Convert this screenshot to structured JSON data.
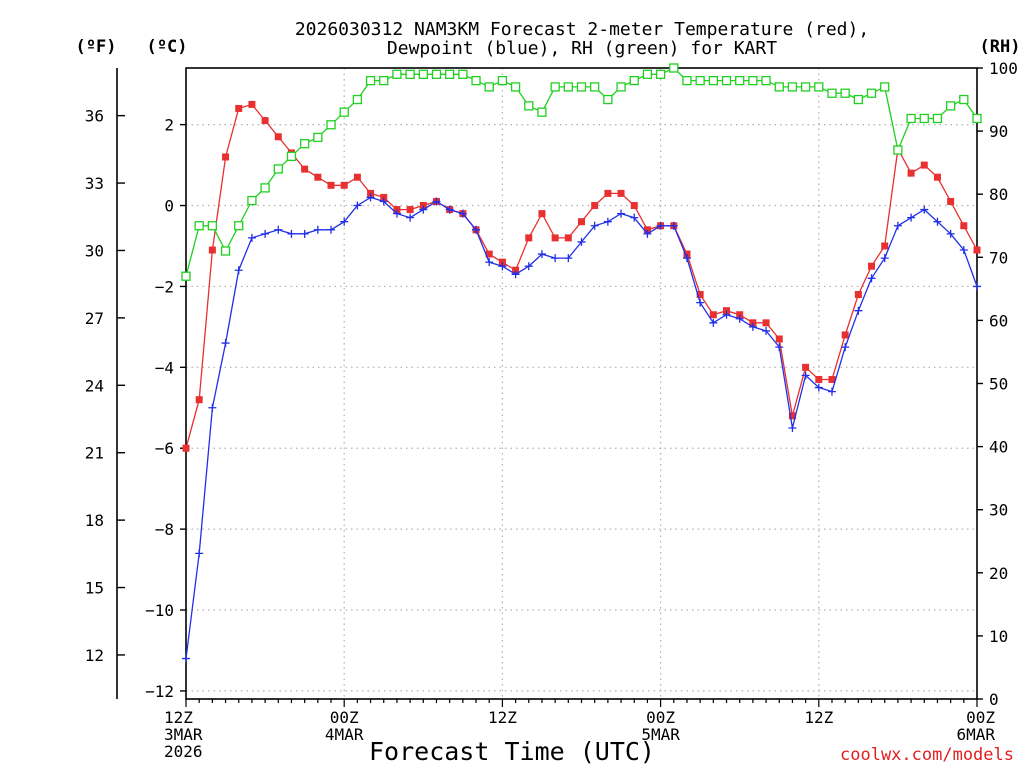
{
  "title": {
    "line1": "2026030312 NAM3KM Forecast 2-meter Temperature (red),",
    "line2": "Dewpoint (blue), RH (green) for KART"
  },
  "xlabel": "Forecast Time (UTC)",
  "credit": "coolwx.com/models",
  "units": {
    "fahrenheit": "(ºF)",
    "celsius": "(ºC)",
    "rh": "(RH)"
  },
  "colors": {
    "temperature": "#e83030",
    "dewpoint": "#2030e8",
    "rh": "#20d020",
    "grid": "#b0b0b0"
  },
  "chart_data": {
    "type": "line",
    "station": "KART",
    "model": "NAM3KM",
    "init": "2026030312",
    "x_unit": "forecast hour",
    "xlim": [
      0,
      60
    ],
    "x_ticks": [
      {
        "hour": 0,
        "label": [
          "12Z",
          "3MAR",
          "2026"
        ]
      },
      {
        "hour": 12,
        "label": [
          "00Z",
          "4MAR"
        ]
      },
      {
        "hour": 24,
        "label": [
          "12Z"
        ]
      },
      {
        "hour": 36,
        "label": [
          "00Z",
          "5MAR"
        ]
      },
      {
        "hour": 48,
        "label": [
          "12Z"
        ]
      },
      {
        "hour": 60,
        "label": [
          "00Z",
          "6MAR"
        ]
      }
    ],
    "y_left_celsius": {
      "label": "(ºC)",
      "ylim": [
        -12.2,
        3.4
      ],
      "ticks": [
        -12,
        -10,
        -8,
        -6,
        -4,
        -2,
        0,
        2
      ]
    },
    "y_left_fahrenheit": {
      "label": "(ºF)",
      "ticks": [
        12,
        15,
        18,
        21,
        24,
        27,
        30,
        33,
        36
      ]
    },
    "y_right_rh": {
      "label": "(RH)",
      "ylim": [
        0,
        100
      ],
      "ticks": [
        0,
        10,
        20,
        30,
        40,
        50,
        60,
        70,
        80,
        90,
        100
      ]
    },
    "series": [
      {
        "name": "Temperature",
        "unit": "°C",
        "color": "#e83030",
        "marker": "filled-square",
        "values": [
          -6.0,
          -4.8,
          -1.1,
          1.2,
          2.4,
          2.5,
          2.1,
          1.7,
          1.3,
          0.9,
          0.7,
          0.5,
          0.5,
          0.7,
          0.3,
          0.2,
          -0.1,
          -0.1,
          0.0,
          0.1,
          -0.1,
          -0.2,
          -0.6,
          -1.2,
          -1.4,
          -1.6,
          -0.8,
          -0.2,
          -0.8,
          -0.8,
          -0.4,
          -0.0,
          0.3,
          0.3,
          0.0,
          -0.6,
          -0.5,
          -0.5,
          -1.2,
          -2.2,
          -2.7,
          -2.6,
          -2.7,
          -2.9,
          -2.9,
          -3.3,
          -5.2,
          -4.0,
          -4.3,
          -4.3,
          -3.2,
          -2.2,
          -1.5,
          -1.0,
          1.4,
          0.8,
          1.0,
          0.7,
          0.1,
          -0.5,
          -1.1
        ]
      },
      {
        "name": "Dewpoint",
        "unit": "°C",
        "color": "#2030e8",
        "marker": "plus",
        "values": [
          -11.2,
          -8.6,
          -5.0,
          -3.4,
          -1.6,
          -0.8,
          -0.7,
          -0.6,
          -0.7,
          -0.7,
          -0.6,
          -0.6,
          -0.4,
          0.0,
          0.2,
          0.1,
          -0.2,
          -0.3,
          -0.1,
          0.1,
          -0.1,
          -0.2,
          -0.6,
          -1.4,
          -1.5,
          -1.7,
          -1.5,
          -1.2,
          -1.3,
          -1.3,
          -0.9,
          -0.5,
          -0.4,
          -0.2,
          -0.3,
          -0.7,
          -0.5,
          -0.5,
          -1.3,
          -2.4,
          -2.9,
          -2.7,
          -2.8,
          -3.0,
          -3.1,
          -3.5,
          -5.5,
          -4.2,
          -4.5,
          -4.6,
          -3.5,
          -2.6,
          -1.8,
          -1.3,
          -0.5,
          -0.3,
          -0.1,
          -0.4,
          -0.7,
          -1.1,
          -2.0
        ]
      },
      {
        "name": "Relative Humidity",
        "unit": "%",
        "color": "#20d020",
        "marker": "open-square",
        "values": [
          67,
          75,
          75,
          71,
          75,
          79,
          81,
          84,
          86,
          88,
          89,
          91,
          93,
          95,
          98,
          98,
          99,
          99,
          99,
          99,
          99,
          99,
          98,
          97,
          98,
          97,
          94,
          93,
          97,
          97,
          97,
          97,
          95,
          97,
          98,
          99,
          99,
          100,
          98,
          98,
          98,
          98,
          98,
          98,
          98,
          97,
          97,
          97,
          97,
          96,
          96,
          95,
          96,
          97,
          87,
          92,
          92,
          92,
          94,
          95,
          92
        ]
      }
    ]
  }
}
